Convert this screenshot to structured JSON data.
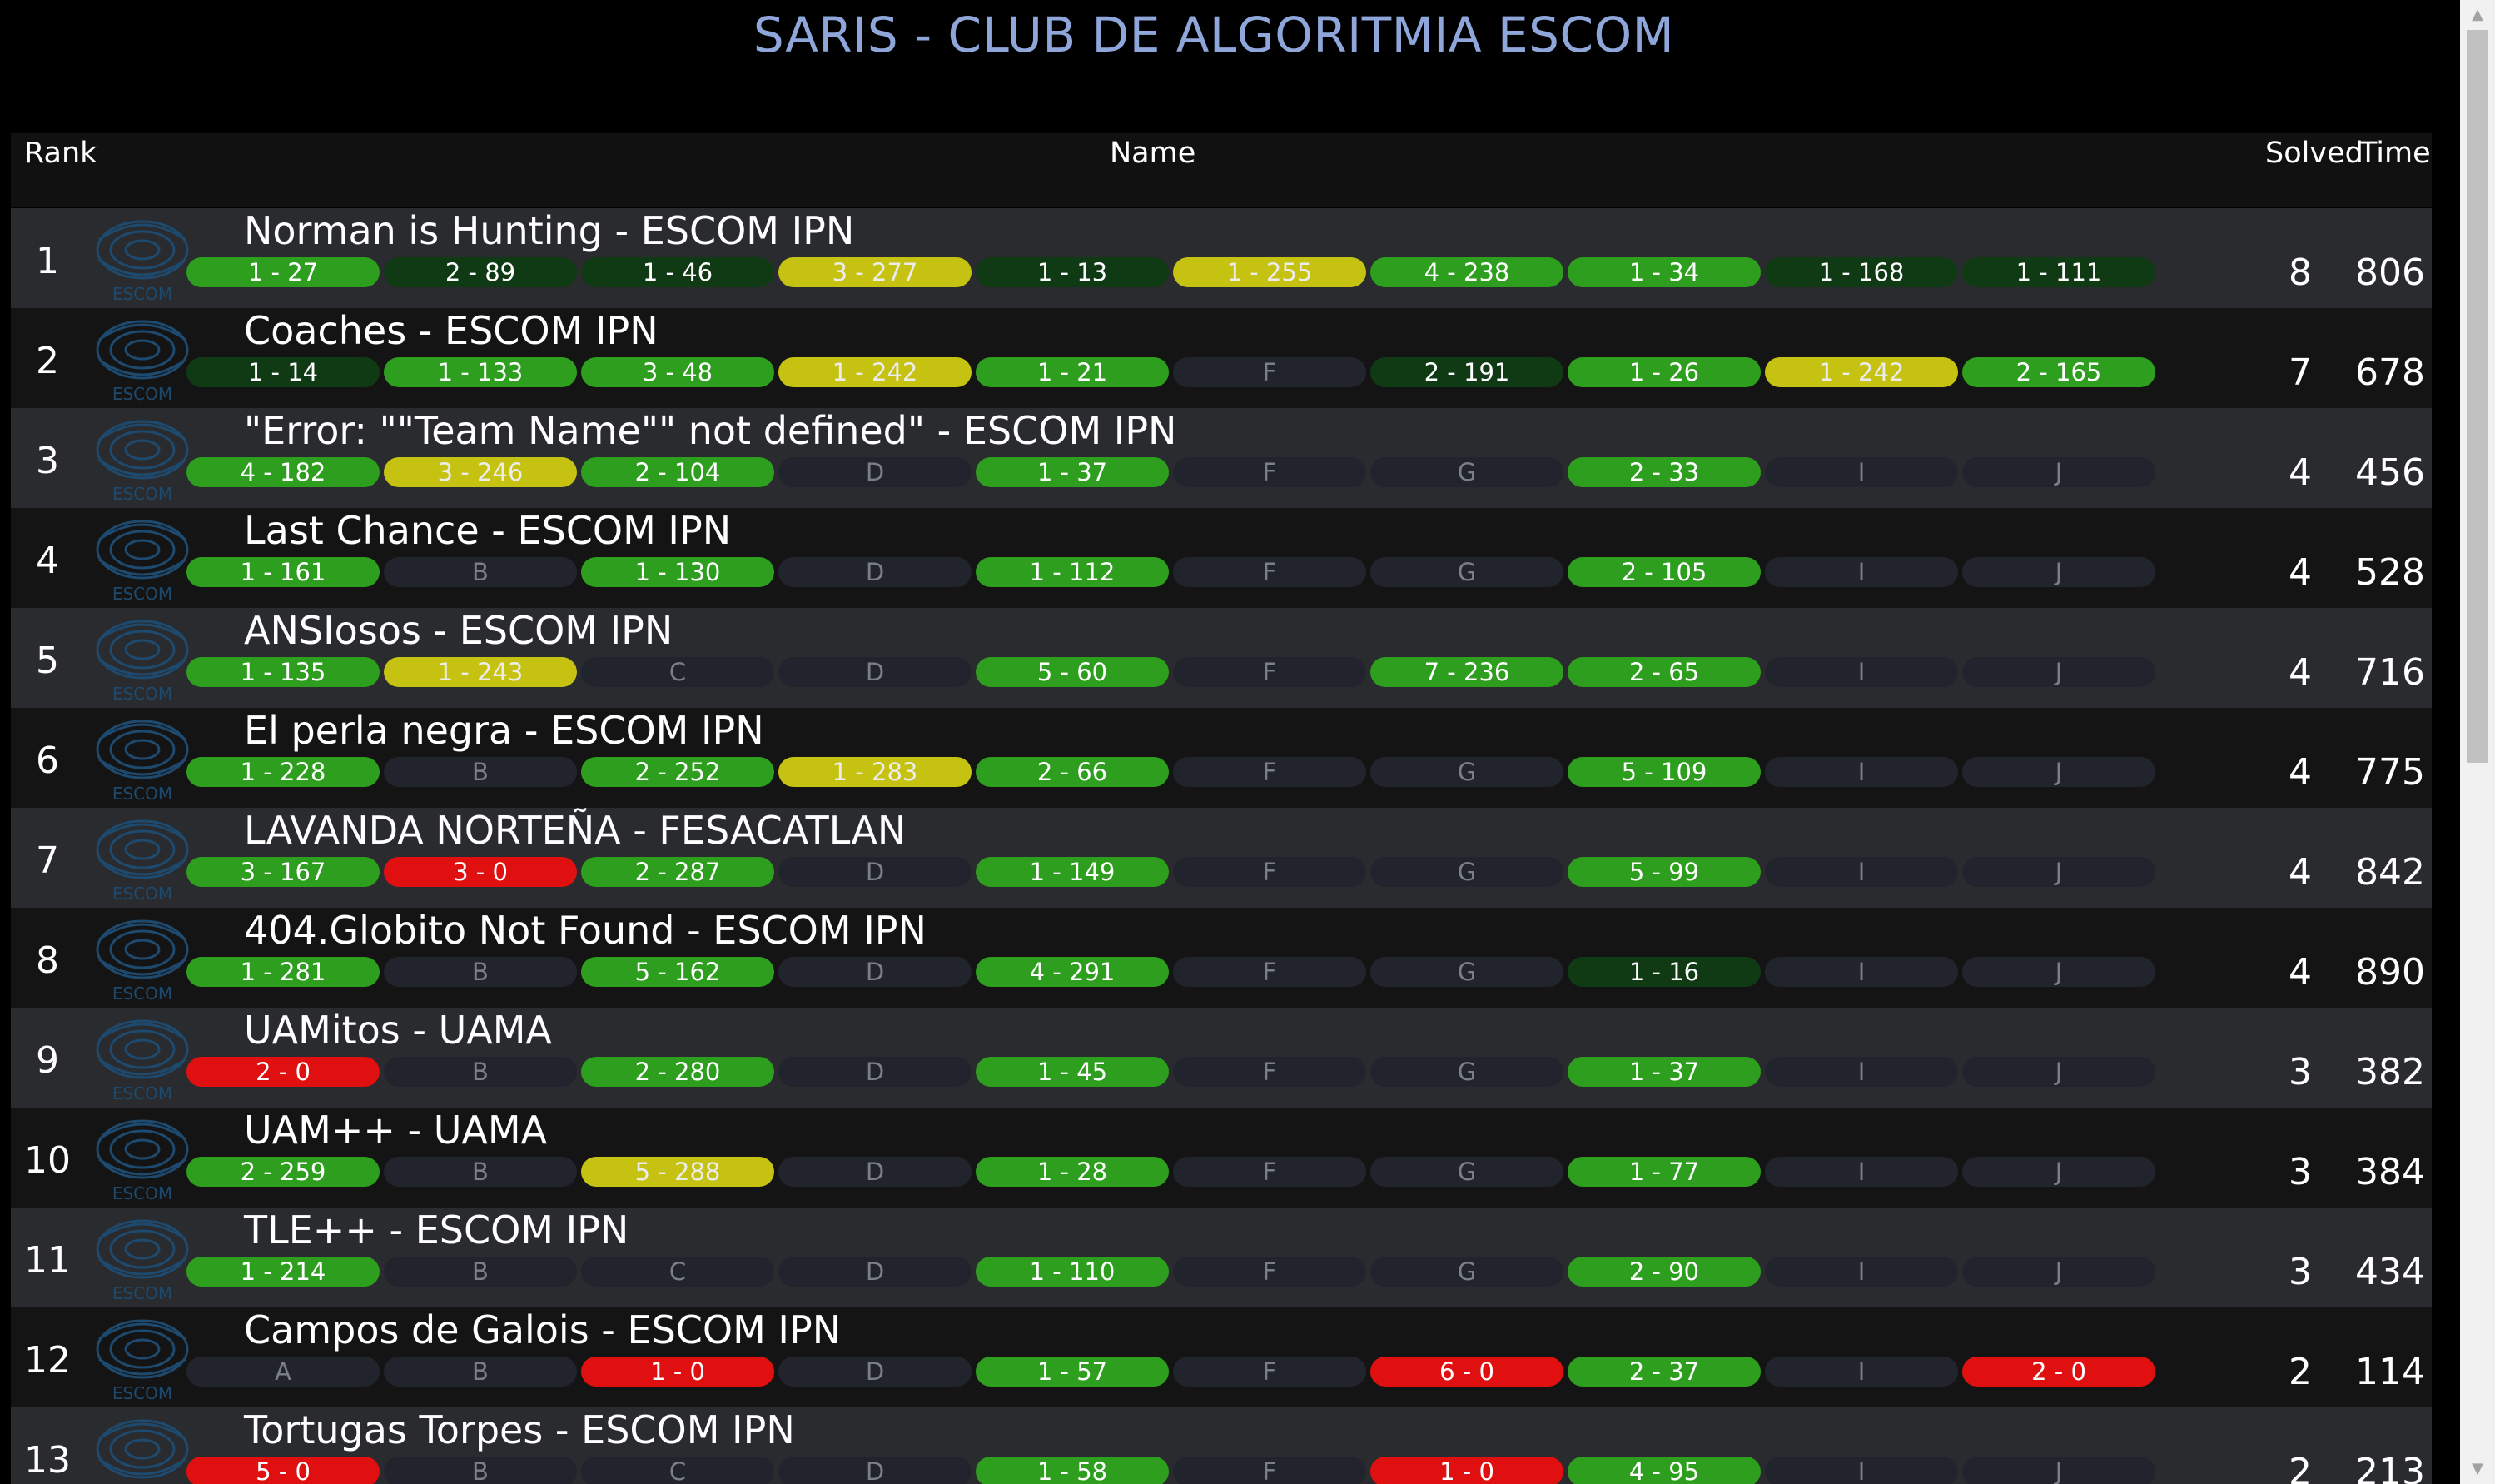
{
  "title": "SARIS - CLUB DE ALGORITMIA ESCOM",
  "header": {
    "rank": "Rank",
    "name": "Name",
    "solved": "Solved",
    "time": "Time"
  },
  "logo_text": "ESCOM",
  "colors": {
    "accepted": "#2e9e1e",
    "first_solve": "#103a14",
    "pending": "#c6c212",
    "rejected": "#e01010",
    "unattempted": "#21242c",
    "title": "#8fa6db"
  },
  "teams": [
    {
      "rank": "1",
      "name": "Norman is Hunting - ESCOM IPN",
      "solved": "8",
      "time": "806",
      "problems": [
        {
          "text": "1 - 27",
          "status": "green"
        },
        {
          "text": "2 - 89",
          "status": "dark"
        },
        {
          "text": "1 - 46",
          "status": "dark"
        },
        {
          "text": "3 - 277",
          "status": "yellow"
        },
        {
          "text": "1 - 13",
          "status": "dark"
        },
        {
          "text": "1 - 255",
          "status": "yellow"
        },
        {
          "text": "4 - 238",
          "status": "green"
        },
        {
          "text": "1 - 34",
          "status": "green"
        },
        {
          "text": "1 - 168",
          "status": "dark"
        },
        {
          "text": "1 - 111",
          "status": "dark"
        }
      ]
    },
    {
      "rank": "2",
      "name": "Coaches - ESCOM IPN",
      "solved": "7",
      "time": "678",
      "problems": [
        {
          "text": "1 - 14",
          "status": "dark"
        },
        {
          "text": "1 - 133",
          "status": "green"
        },
        {
          "text": "3 - 48",
          "status": "green"
        },
        {
          "text": "1 - 242",
          "status": "yellow"
        },
        {
          "text": "1 - 21",
          "status": "green"
        },
        {
          "text": "F",
          "status": "empty"
        },
        {
          "text": "2 - 191",
          "status": "dark"
        },
        {
          "text": "1 - 26",
          "status": "green"
        },
        {
          "text": "1 - 242",
          "status": "yellow"
        },
        {
          "text": "2 - 165",
          "status": "green"
        }
      ]
    },
    {
      "rank": "3",
      "name": "\"Error: \"\"Team Name\"\" not defined\" - ESCOM IPN",
      "solved": "4",
      "time": "456",
      "problems": [
        {
          "text": "4 - 182",
          "status": "green"
        },
        {
          "text": "3 - 246",
          "status": "yellow"
        },
        {
          "text": "2 - 104",
          "status": "green"
        },
        {
          "text": "D",
          "status": "empty"
        },
        {
          "text": "1 - 37",
          "status": "green"
        },
        {
          "text": "F",
          "status": "empty"
        },
        {
          "text": "G",
          "status": "empty"
        },
        {
          "text": "2 - 33",
          "status": "green"
        },
        {
          "text": "I",
          "status": "empty"
        },
        {
          "text": "J",
          "status": "empty"
        }
      ]
    },
    {
      "rank": "4",
      "name": "Last Chance - ESCOM IPN",
      "solved": "4",
      "time": "528",
      "problems": [
        {
          "text": "1 - 161",
          "status": "green"
        },
        {
          "text": "B",
          "status": "empty"
        },
        {
          "text": "1 - 130",
          "status": "green"
        },
        {
          "text": "D",
          "status": "empty"
        },
        {
          "text": "1 - 112",
          "status": "green"
        },
        {
          "text": "F",
          "status": "empty"
        },
        {
          "text": "G",
          "status": "empty"
        },
        {
          "text": "2 - 105",
          "status": "green"
        },
        {
          "text": "I",
          "status": "empty"
        },
        {
          "text": "J",
          "status": "empty"
        }
      ]
    },
    {
      "rank": "5",
      "name": "ANSIosos - ESCOM IPN",
      "solved": "4",
      "time": "716",
      "problems": [
        {
          "text": "1 - 135",
          "status": "green"
        },
        {
          "text": "1 - 243",
          "status": "yellow"
        },
        {
          "text": "C",
          "status": "empty"
        },
        {
          "text": "D",
          "status": "empty"
        },
        {
          "text": "5 - 60",
          "status": "green"
        },
        {
          "text": "F",
          "status": "empty"
        },
        {
          "text": "7 - 236",
          "status": "green"
        },
        {
          "text": "2 - 65",
          "status": "green"
        },
        {
          "text": "I",
          "status": "empty"
        },
        {
          "text": "J",
          "status": "empty"
        }
      ]
    },
    {
      "rank": "6",
      "name": "El perla negra - ESCOM IPN",
      "solved": "4",
      "time": "775",
      "problems": [
        {
          "text": "1 - 228",
          "status": "green"
        },
        {
          "text": "B",
          "status": "empty"
        },
        {
          "text": "2 - 252",
          "status": "green"
        },
        {
          "text": "1 - 283",
          "status": "yellow"
        },
        {
          "text": "2 - 66",
          "status": "green"
        },
        {
          "text": "F",
          "status": "empty"
        },
        {
          "text": "G",
          "status": "empty"
        },
        {
          "text": "5 - 109",
          "status": "green"
        },
        {
          "text": "I",
          "status": "empty"
        },
        {
          "text": "J",
          "status": "empty"
        }
      ]
    },
    {
      "rank": "7",
      "name": "LAVANDA NORTEÑA - FESACATLAN",
      "solved": "4",
      "time": "842",
      "problems": [
        {
          "text": "3 - 167",
          "status": "green"
        },
        {
          "text": "3 - 0",
          "status": "red"
        },
        {
          "text": "2 - 287",
          "status": "green"
        },
        {
          "text": "D",
          "status": "empty"
        },
        {
          "text": "1 - 149",
          "status": "green"
        },
        {
          "text": "F",
          "status": "empty"
        },
        {
          "text": "G",
          "status": "empty"
        },
        {
          "text": "5 - 99",
          "status": "green"
        },
        {
          "text": "I",
          "status": "empty"
        },
        {
          "text": "J",
          "status": "empty"
        }
      ]
    },
    {
      "rank": "8",
      "name": "404.Globito Not Found - ESCOM IPN",
      "solved": "4",
      "time": "890",
      "problems": [
        {
          "text": "1 - 281",
          "status": "green"
        },
        {
          "text": "B",
          "status": "empty"
        },
        {
          "text": "5 - 162",
          "status": "green"
        },
        {
          "text": "D",
          "status": "empty"
        },
        {
          "text": "4 - 291",
          "status": "green"
        },
        {
          "text": "F",
          "status": "empty"
        },
        {
          "text": "G",
          "status": "empty"
        },
        {
          "text": "1 - 16",
          "status": "dark"
        },
        {
          "text": "I",
          "status": "empty"
        },
        {
          "text": "J",
          "status": "empty"
        }
      ]
    },
    {
      "rank": "9",
      "name": "UAMitos - UAMA",
      "solved": "3",
      "time": "382",
      "problems": [
        {
          "text": "2 - 0",
          "status": "red"
        },
        {
          "text": "B",
          "status": "empty"
        },
        {
          "text": "2 - 280",
          "status": "green"
        },
        {
          "text": "D",
          "status": "empty"
        },
        {
          "text": "1 - 45",
          "status": "green"
        },
        {
          "text": "F",
          "status": "empty"
        },
        {
          "text": "G",
          "status": "empty"
        },
        {
          "text": "1 - 37",
          "status": "green"
        },
        {
          "text": "I",
          "status": "empty"
        },
        {
          "text": "J",
          "status": "empty"
        }
      ]
    },
    {
      "rank": "10",
      "name": "UAM++ - UAMA",
      "solved": "3",
      "time": "384",
      "problems": [
        {
          "text": "2 - 259",
          "status": "green"
        },
        {
          "text": "B",
          "status": "empty"
        },
        {
          "text": "5 - 288",
          "status": "yellow"
        },
        {
          "text": "D",
          "status": "empty"
        },
        {
          "text": "1 - 28",
          "status": "green"
        },
        {
          "text": "F",
          "status": "empty"
        },
        {
          "text": "G",
          "status": "empty"
        },
        {
          "text": "1 - 77",
          "status": "green"
        },
        {
          "text": "I",
          "status": "empty"
        },
        {
          "text": "J",
          "status": "empty"
        }
      ]
    },
    {
      "rank": "11",
      "name": "TLE++ - ESCOM IPN",
      "solved": "3",
      "time": "434",
      "problems": [
        {
          "text": "1 - 214",
          "status": "green"
        },
        {
          "text": "B",
          "status": "empty"
        },
        {
          "text": "C",
          "status": "empty"
        },
        {
          "text": "D",
          "status": "empty"
        },
        {
          "text": "1 - 110",
          "status": "green"
        },
        {
          "text": "F",
          "status": "empty"
        },
        {
          "text": "G",
          "status": "empty"
        },
        {
          "text": "2 - 90",
          "status": "green"
        },
        {
          "text": "I",
          "status": "empty"
        },
        {
          "text": "J",
          "status": "empty"
        }
      ]
    },
    {
      "rank": "12",
      "name": "Campos de Galois - ESCOM IPN",
      "solved": "2",
      "time": "114",
      "problems": [
        {
          "text": "A",
          "status": "empty"
        },
        {
          "text": "B",
          "status": "empty"
        },
        {
          "text": "1 - 0",
          "status": "red"
        },
        {
          "text": "D",
          "status": "empty"
        },
        {
          "text": "1 - 57",
          "status": "green"
        },
        {
          "text": "F",
          "status": "empty"
        },
        {
          "text": "6 - 0",
          "status": "red"
        },
        {
          "text": "2 - 37",
          "status": "green"
        },
        {
          "text": "I",
          "status": "empty"
        },
        {
          "text": "2 - 0",
          "status": "red"
        }
      ]
    },
    {
      "rank": "13",
      "name": "Tortugas Torpes - ESCOM IPN",
      "solved": "2",
      "time": "213",
      "problems": [
        {
          "text": "5 - 0",
          "status": "red"
        },
        {
          "text": "B",
          "status": "empty"
        },
        {
          "text": "C",
          "status": "empty"
        },
        {
          "text": "D",
          "status": "empty"
        },
        {
          "text": "1 - 58",
          "status": "green"
        },
        {
          "text": "F",
          "status": "empty"
        },
        {
          "text": "1 - 0",
          "status": "red"
        },
        {
          "text": "4 - 95",
          "status": "green"
        },
        {
          "text": "I",
          "status": "empty"
        },
        {
          "text": "J",
          "status": "empty"
        }
      ]
    }
  ]
}
